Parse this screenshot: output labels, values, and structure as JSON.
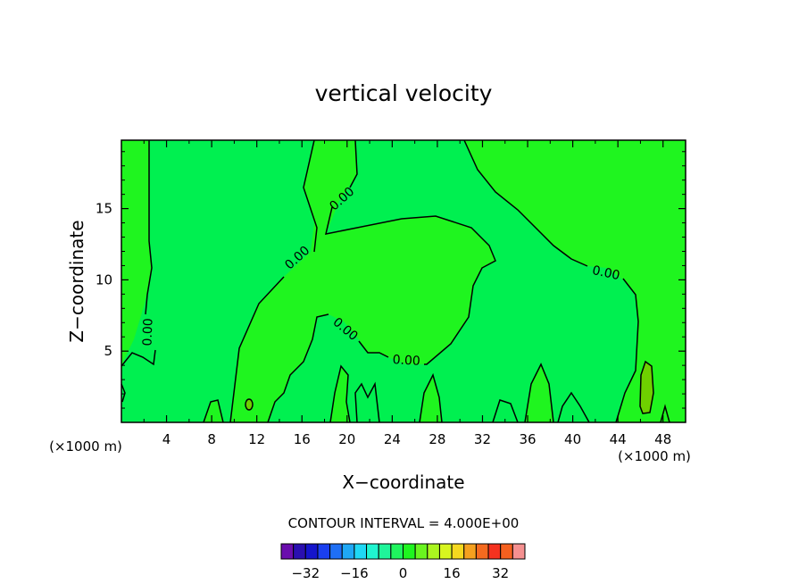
{
  "chart_data": {
    "type": "heatmap",
    "title": "vertical velocity",
    "xlabel": "X−coordinate",
    "ylabel": "Z−coordinate",
    "x_unit_left": "(×1000 m)",
    "x_unit_right": "(×1000 m)",
    "xlim": [
      0,
      50
    ],
    "ylim": [
      0,
      19.8
    ],
    "x_ticks": [
      4,
      8,
      12,
      16,
      20,
      24,
      28,
      32,
      36,
      40,
      44,
      48
    ],
    "y_ticks": [
      5,
      10,
      15
    ],
    "contour_interval_text": "CONTOUR INTERVAL = 4.000E+00",
    "contour_label": "0.00",
    "contour_levels": [
      -36,
      -32,
      -28,
      -24,
      -20,
      -16,
      -12,
      -8,
      -4,
      0,
      4,
      8,
      12,
      16,
      20,
      24,
      28,
      32,
      36
    ],
    "colorbar_colors": [
      "#6a0dad",
      "#2a0fb0",
      "#1515cc",
      "#1a3ff0",
      "#1f6ff5",
      "#1fa8f5",
      "#1fd8f5",
      "#1ff5d0",
      "#1ff59a",
      "#1ff55e",
      "#1ff51f",
      "#6af51f",
      "#aaf51f",
      "#d8f51f",
      "#f5d81f",
      "#f5a01f",
      "#f56a1f",
      "#f5321f",
      "#f5601f",
      "#f59090"
    ],
    "colorbar_ticks": [
      "−32",
      "−16",
      "0",
      "16",
      "32"
    ],
    "colors": {
      "background_band": "#00f050",
      "positive_region": "#1ff51f",
      "weak_positive": "#6ed000"
    }
  }
}
